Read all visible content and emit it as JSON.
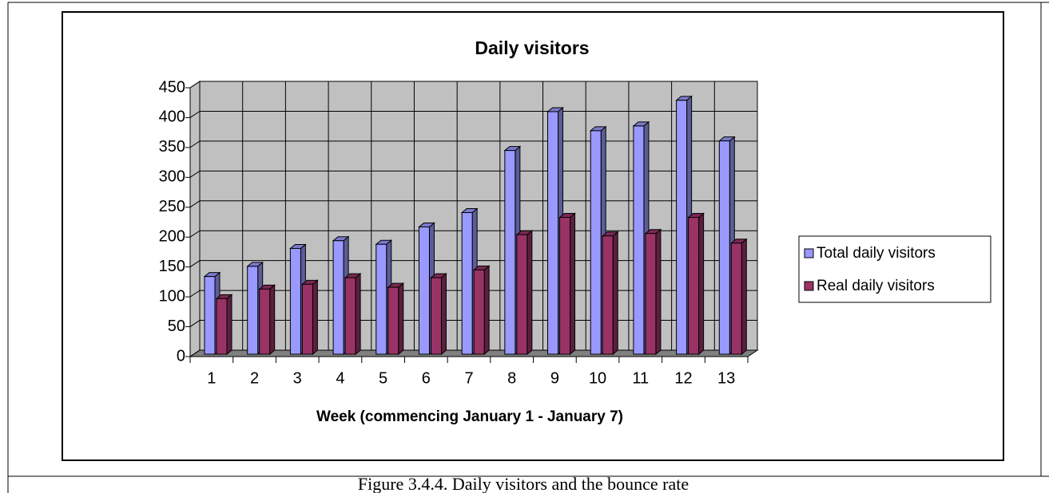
{
  "caption": "Figure 3.4.4. Daily visitors and the bounce rate",
  "chart_data": {
    "type": "bar3d",
    "title": "Daily visitors",
    "x_label": "Week (commencing January 1 - January 7)",
    "categories": [
      "1",
      "2",
      "3",
      "4",
      "5",
      "6",
      "7",
      "8",
      "9",
      "10",
      "11",
      "12",
      "13"
    ],
    "series": [
      {
        "name": "Total daily visitors",
        "color": "#9999ff",
        "values": [
          130,
          147,
          177,
          190,
          184,
          213,
          237,
          341,
          406,
          374,
          382,
          425,
          357
        ]
      },
      {
        "name": "Real daily visitors",
        "color": "#993366",
        "values": [
          93,
          109,
          117,
          128,
          112,
          128,
          141,
          200,
          229,
          198,
          202,
          229,
          186
        ]
      }
    ],
    "ylim": [
      0,
      450
    ],
    "yticks": [
      0,
      50,
      100,
      150,
      200,
      250,
      300,
      350,
      400,
      450
    ],
    "grid": true,
    "legend": "right"
  }
}
